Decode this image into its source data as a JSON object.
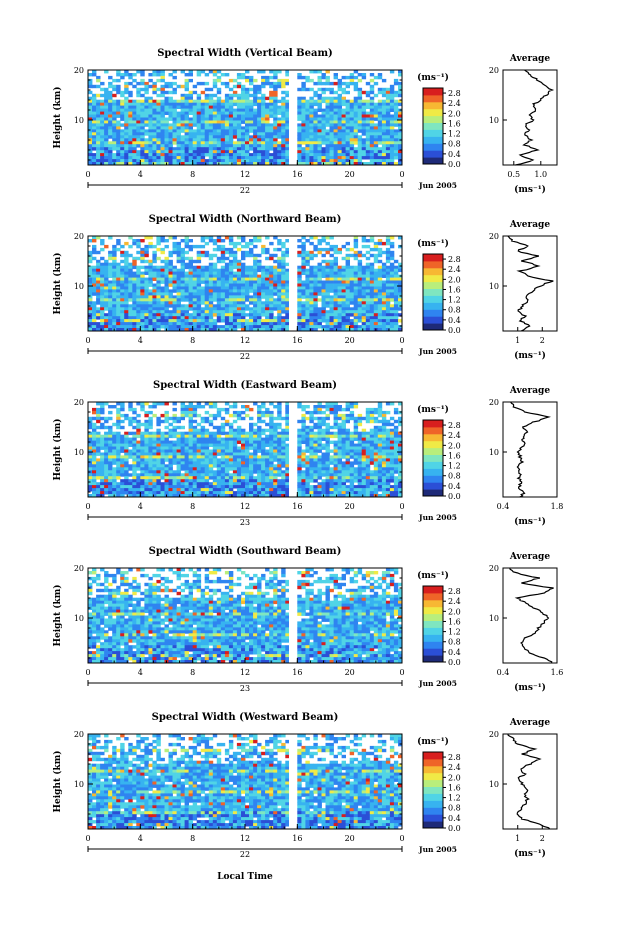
{
  "figure": {
    "x_axis_label": "Local Time",
    "y_axis_label": "Height (km)",
    "colorbar_unit": "(ms⁻¹)",
    "average_title": "Average",
    "average_xlabel": "(ms⁻¹)",
    "date_label": "Jun 2005",
    "colors": {
      "outline": "#000000",
      "line": "#000000",
      "gap": "#ffffff"
    }
  },
  "chart_data": [
    {
      "type": "heatmap",
      "title": "Spectral Width (Vertical Beam)",
      "x_ticks": [
        "0",
        "4",
        "8",
        "12",
        "16",
        "20",
        "0"
      ],
      "day_label": "22",
      "y_ticks": [
        "20",
        "10"
      ],
      "xlim": [
        0,
        24
      ],
      "ylim": [
        1,
        20
      ],
      "colorbar": {
        "ticks": [
          "2.8",
          "2.4",
          "2.0",
          "1.6",
          "1.2",
          "0.8",
          "0.4",
          "0.0"
        ],
        "range": [
          0.0,
          3.0
        ],
        "colors": [
          "#1e2a78",
          "#2b4fd6",
          "#2f84f0",
          "#37b3f0",
          "#50d4e6",
          "#7fe6c0",
          "#b9ee7c",
          "#f0ea46",
          "#f7b833",
          "#ef6428",
          "#d81e1e"
        ]
      },
      "average": {
        "xlim": [
          0.3,
          1.3
        ],
        "x_ticks": [
          "0.5",
          "1.0"
        ],
        "y_ticks": [
          "20",
          "10"
        ],
        "profile": [
          [
            1,
            0.55
          ],
          [
            2,
            0.85
          ],
          [
            3,
            0.6
          ],
          [
            4,
            0.95
          ],
          [
            5,
            0.7
          ],
          [
            6,
            0.82
          ],
          [
            7,
            0.7
          ],
          [
            8,
            0.78
          ],
          [
            9,
            0.72
          ],
          [
            10,
            0.85
          ],
          [
            11,
            0.8
          ],
          [
            12,
            0.9
          ],
          [
            13,
            0.85
          ],
          [
            14,
            1.0
          ],
          [
            15,
            1.1
          ],
          [
            16,
            1.2
          ],
          [
            17,
            1.05
          ],
          [
            18,
            0.95
          ],
          [
            19,
            0.8
          ],
          [
            20,
            0.7
          ]
        ]
      }
    },
    {
      "type": "heatmap",
      "title": "Spectral Width (Northward Beam)",
      "x_ticks": [
        "0",
        "4",
        "8",
        "12",
        "16",
        "20",
        "0"
      ],
      "day_label": "22",
      "y_ticks": [
        "20",
        "10"
      ],
      "xlim": [
        0,
        24
      ],
      "ylim": [
        1,
        20
      ],
      "colorbar": {
        "ticks": [
          "2.8",
          "2.4",
          "2.0",
          "1.6",
          "1.2",
          "0.8",
          "0.4",
          "0.0"
        ],
        "range": [
          0.0,
          3.0
        ],
        "colors": [
          "#1e2a78",
          "#2b4fd6",
          "#2f84f0",
          "#37b3f0",
          "#50d4e6",
          "#7fe6c0",
          "#b9ee7c",
          "#f0ea46",
          "#f7b833",
          "#ef6428",
          "#d81e1e"
        ]
      },
      "average": {
        "xlim": [
          0.4,
          2.6
        ],
        "x_ticks": [
          "1",
          "2"
        ],
        "y_ticks": [
          "20",
          "10"
        ],
        "profile": [
          [
            1,
            1.2
          ],
          [
            2,
            1.5
          ],
          [
            3,
            1.1
          ],
          [
            4,
            1.3
          ],
          [
            5,
            1.0
          ],
          [
            6,
            1.2
          ],
          [
            7,
            1.4
          ],
          [
            8,
            1.3
          ],
          [
            9,
            1.6
          ],
          [
            10,
            1.9
          ],
          [
            11,
            2.4
          ],
          [
            12,
            1.4
          ],
          [
            13,
            1.1
          ],
          [
            14,
            1.9
          ],
          [
            15,
            1.2
          ],
          [
            16,
            1.8
          ],
          [
            17,
            1.0
          ],
          [
            18,
            1.4
          ],
          [
            19,
            0.8
          ],
          [
            20,
            0.6
          ]
        ]
      }
    },
    {
      "type": "heatmap",
      "title": "Spectral Width (Eastward Beam)",
      "x_ticks": [
        "0",
        "4",
        "8",
        "12",
        "16",
        "20",
        "0"
      ],
      "day_label": "23",
      "y_ticks": [
        "20",
        "10"
      ],
      "xlim": [
        0,
        24
      ],
      "ylim": [
        1,
        20
      ],
      "colorbar": {
        "ticks": [
          "2.8",
          "2.4",
          "2.0",
          "1.6",
          "1.2",
          "0.8",
          "0.4",
          "0.0"
        ],
        "range": [
          0.0,
          3.0
        ],
        "colors": [
          "#1e2a78",
          "#2b4fd6",
          "#2f84f0",
          "#37b3f0",
          "#50d4e6",
          "#7fe6c0",
          "#b9ee7c",
          "#f0ea46",
          "#f7b833",
          "#ef6428",
          "#d81e1e"
        ]
      },
      "average": {
        "xlim": [
          0.4,
          1.8
        ],
        "x_ticks": [
          "0.4",
          "1.8"
        ],
        "y_ticks": [
          "20",
          "10"
        ],
        "profile": [
          [
            1,
            0.85
          ],
          [
            2,
            0.95
          ],
          [
            3,
            0.8
          ],
          [
            4,
            0.9
          ],
          [
            5,
            0.8
          ],
          [
            6,
            0.85
          ],
          [
            7,
            0.8
          ],
          [
            8,
            0.9
          ],
          [
            9,
            0.85
          ],
          [
            10,
            0.8
          ],
          [
            11,
            0.9
          ],
          [
            12,
            0.95
          ],
          [
            13,
            0.9
          ],
          [
            14,
            1.0
          ],
          [
            15,
            0.95
          ],
          [
            16,
            1.2
          ],
          [
            17,
            1.6
          ],
          [
            18,
            1.0
          ],
          [
            19,
            0.7
          ],
          [
            20,
            0.6
          ]
        ]
      }
    },
    {
      "type": "heatmap",
      "title": "Spectral Width (Southward Beam)",
      "x_ticks": [
        "0",
        "4",
        "8",
        "12",
        "16",
        "20",
        "0"
      ],
      "day_label": "23",
      "y_ticks": [
        "20",
        "10"
      ],
      "xlim": [
        0,
        24
      ],
      "ylim": [
        1,
        20
      ],
      "colorbar": {
        "ticks": [
          "2.8",
          "2.4",
          "2.0",
          "1.6",
          "1.2",
          "0.8",
          "0.4",
          "0.0"
        ],
        "range": [
          0.0,
          3.0
        ],
        "colors": [
          "#1e2a78",
          "#2b4fd6",
          "#2f84f0",
          "#37b3f0",
          "#50d4e6",
          "#7fe6c0",
          "#b9ee7c",
          "#f0ea46",
          "#f7b833",
          "#ef6428",
          "#d81e1e"
        ]
      },
      "average": {
        "xlim": [
          0.4,
          1.6
        ],
        "x_ticks": [
          "0.4",
          "1.6"
        ],
        "y_ticks": [
          "20",
          "10"
        ],
        "profile": [
          [
            1,
            1.5
          ],
          [
            2,
            1.3
          ],
          [
            3,
            1.0
          ],
          [
            4,
            0.85
          ],
          [
            5,
            0.8
          ],
          [
            6,
            0.9
          ],
          [
            7,
            1.1
          ],
          [
            8,
            1.2
          ],
          [
            9,
            1.3
          ],
          [
            10,
            1.4
          ],
          [
            11,
            1.3
          ],
          [
            12,
            1.1
          ],
          [
            13,
            0.9
          ],
          [
            14,
            0.7
          ],
          [
            15,
            1.3
          ],
          [
            16,
            1.5
          ],
          [
            17,
            0.8
          ],
          [
            18,
            1.2
          ],
          [
            19,
            0.7
          ],
          [
            20,
            0.55
          ]
        ]
      }
    },
    {
      "type": "heatmap",
      "title": "Spectral Width (Westward Beam)",
      "x_ticks": [
        "0",
        "4",
        "8",
        "12",
        "16",
        "20",
        "0"
      ],
      "day_label": "22",
      "y_ticks": [
        "20",
        "10"
      ],
      "xlim": [
        0,
        24
      ],
      "ylim": [
        1,
        20
      ],
      "colorbar": {
        "ticks": [
          "2.8",
          "2.4",
          "2.0",
          "1.6",
          "1.2",
          "0.8",
          "0.4",
          "0.0"
        ],
        "range": [
          0.0,
          3.0
        ],
        "colors": [
          "#1e2a78",
          "#2b4fd6",
          "#2f84f0",
          "#37b3f0",
          "#50d4e6",
          "#7fe6c0",
          "#b9ee7c",
          "#f0ea46",
          "#f7b833",
          "#ef6428",
          "#d81e1e"
        ]
      },
      "average": {
        "xlim": [
          0.4,
          2.6
        ],
        "x_ticks": [
          "1",
          "2"
        ],
        "y_ticks": [
          "20",
          "10"
        ],
        "profile": [
          [
            1,
            2.3
          ],
          [
            2,
            1.9
          ],
          [
            3,
            1.2
          ],
          [
            4,
            1.0
          ],
          [
            5,
            1.1
          ],
          [
            6,
            1.3
          ],
          [
            7,
            1.4
          ],
          [
            8,
            1.3
          ],
          [
            9,
            1.4
          ],
          [
            10,
            1.2
          ],
          [
            11,
            1.0
          ],
          [
            12,
            1.3
          ],
          [
            13,
            1.1
          ],
          [
            14,
            1.5
          ],
          [
            15,
            1.9
          ],
          [
            16,
            1.2
          ],
          [
            17,
            1.7
          ],
          [
            18,
            1.0
          ],
          [
            19,
            0.8
          ],
          [
            20,
            0.6
          ]
        ]
      }
    }
  ]
}
